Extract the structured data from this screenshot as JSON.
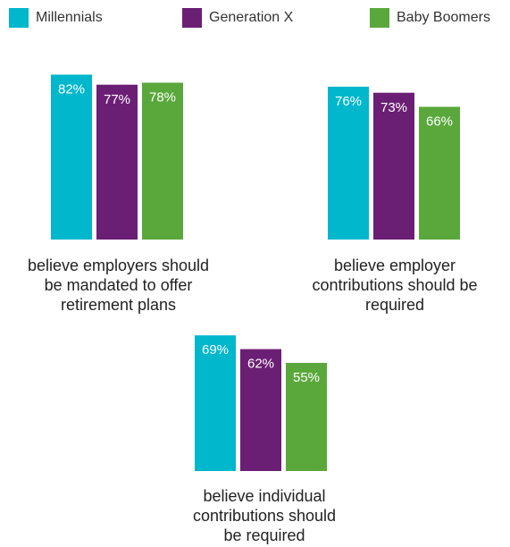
{
  "legend": [
    {
      "name": "Millennials",
      "color": "#00b7cc"
    },
    {
      "name": "Generation X",
      "color": "#6b1f74"
    },
    {
      "name": "Baby Boomers",
      "color": "#5aa83c"
    }
  ],
  "chart_data": [
    {
      "type": "bar",
      "categories": [
        "Millennials",
        "Generation X",
        "Baby Boomers"
      ],
      "values": [
        82,
        77,
        78
      ],
      "data_labels": [
        "82%",
        "77%",
        "78%"
      ],
      "caption": "believe employers should\nbe mandated to offer\nretirement plans",
      "ylim": [
        0,
        100
      ],
      "grid": false
    },
    {
      "type": "bar",
      "categories": [
        "Millennials",
        "Generation X",
        "Baby Boomers"
      ],
      "values": [
        76,
        73,
        66
      ],
      "data_labels": [
        "76%",
        "73%",
        "66%"
      ],
      "caption": "believe employer\ncontributions should be\nrequired",
      "ylim": [
        0,
        100
      ],
      "grid": false
    },
    {
      "type": "bar",
      "categories": [
        "Millennials",
        "Generation X",
        "Baby Boomers"
      ],
      "values": [
        69,
        62,
        55
      ],
      "data_labels": [
        "69%",
        "62%",
        "55%"
      ],
      "caption": "believe individual\ncontributions should\nbe required",
      "ylim": [
        0,
        100
      ],
      "grid": false
    }
  ]
}
